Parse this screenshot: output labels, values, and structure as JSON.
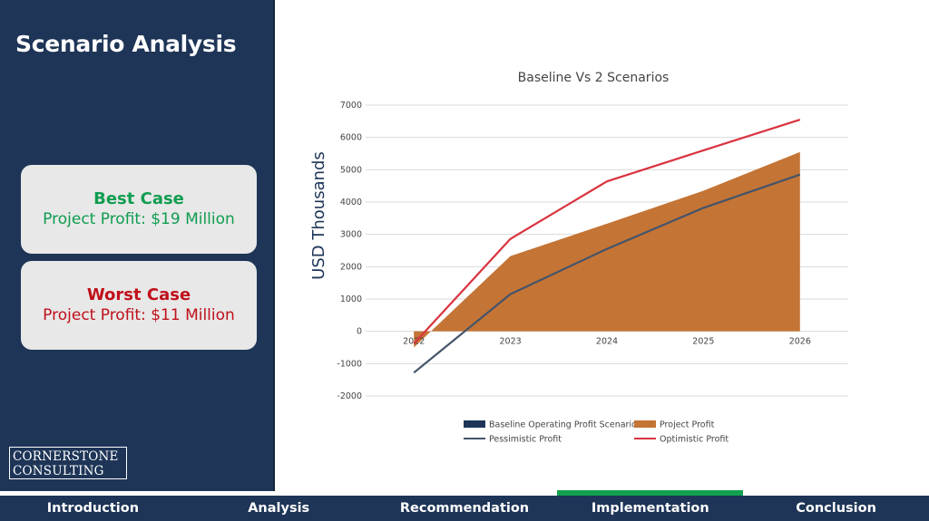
{
  "slide": {
    "title": "Scenario Analysis"
  },
  "cases": [
    {
      "heading": "Best Case",
      "value": "Project Profit: $19 Million",
      "color": "#0f9d50"
    },
    {
      "heading": "Worst Case",
      "value": "Project Profit: $11 Million",
      "color": "#c0101a"
    }
  ],
  "logo": {
    "line1": "CORNERSTONE",
    "line2": "CONSULTING"
  },
  "nav": {
    "items": [
      "Introduction",
      "Analysis",
      "Recommendation",
      "Implementation",
      "Conclusion"
    ],
    "active_index": 3,
    "active_color": "#13a04f"
  },
  "chart_data": {
    "type": "area",
    "title": "Baseline Vs 2 Scenarios",
    "ylabel": "USD Thousands",
    "xlabel": "",
    "categories": [
      "2022",
      "2023",
      "2024",
      "2025",
      "2026"
    ],
    "ylim": [
      -2000,
      7000
    ],
    "yticks": [
      "7000",
      "6000",
      "5000",
      "4000",
      "3000",
      "2000",
      "1000",
      "0",
      "-1000",
      "-2000"
    ],
    "grid": true,
    "legend_position": "bottom",
    "series": [
      {
        "name": "Baseline Operating Profit Scenario",
        "kind": "bar",
        "color": "#1e3557",
        "values": [
          0,
          0,
          0,
          0,
          0
        ]
      },
      {
        "name": "Project Profit",
        "kind": "area",
        "color": "#c47435",
        "values": [
          -500,
          2330,
          3330,
          4350,
          5550
        ]
      },
      {
        "name": "Pessimistic Profit",
        "kind": "line",
        "color": "#44546a",
        "values": [
          -1280,
          1150,
          2550,
          3820,
          4850
        ]
      },
      {
        "name": "Optimistic Profit",
        "kind": "line",
        "color": "#d9333f",
        "values": [
          -380,
          2860,
          4640,
          5600,
          6550
        ]
      }
    ]
  }
}
